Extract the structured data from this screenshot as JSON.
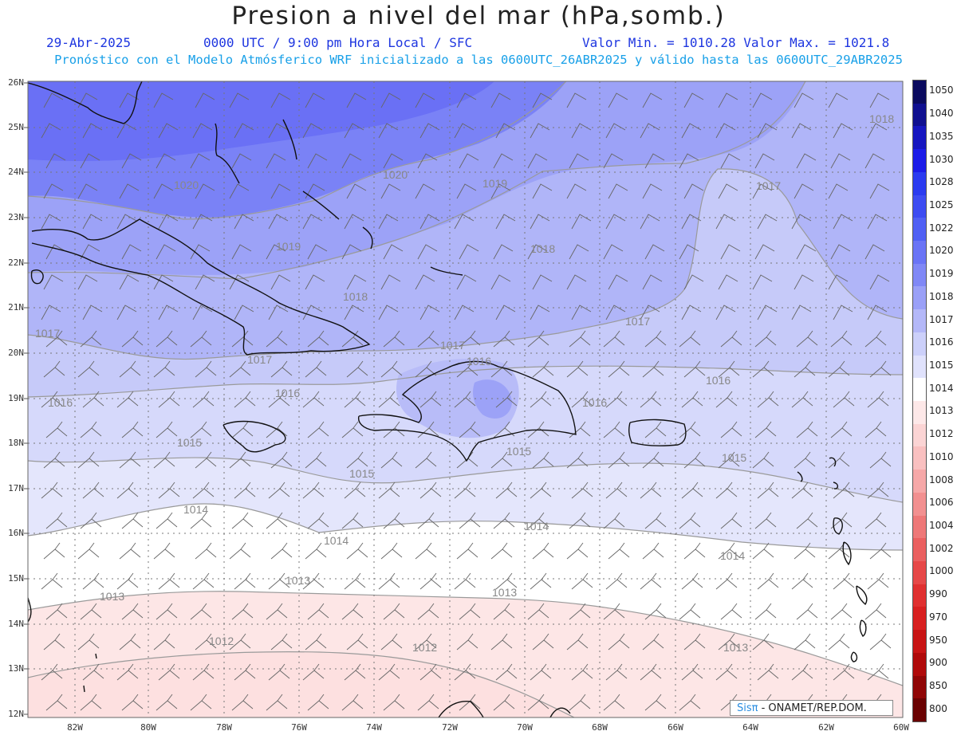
{
  "title": "Presion a nivel del mar (hPa,somb.)",
  "date": "29-Abr-2025",
  "time_info": "0000 UTC / 9:00 pm Hora Local / SFC",
  "min_max": "Valor Min. = 1010.28  Valor Max. = 1021.8",
  "forecast_info": "Pronóstico con el Modelo Atmósferico WRF inicializado a las 0600UTC_26ABR2025 y válido hasta las  0600UTC_29ABR2025",
  "latitudes": [
    "26N",
    "25N",
    "24N",
    "23N",
    "22N",
    "21N",
    "20N",
    "19N",
    "18N",
    "17N",
    "16N",
    "15N",
    "14N",
    "13N",
    "12N"
  ],
  "longitudes": [
    "82W",
    "80W",
    "78W",
    "76W",
    "74W",
    "72W",
    "70W",
    "68W",
    "66W",
    "64W",
    "62W",
    "60W"
  ],
  "colorbar": {
    "labels": [
      "1050",
      "1040",
      "1035",
      "1030",
      "1028",
      "1025",
      "1022",
      "1020",
      "1019",
      "1018",
      "1017",
      "1016",
      "1015",
      "1014",
      "1013",
      "1012",
      "1010",
      "1008",
      "1006",
      "1004",
      "1002",
      "1000",
      "990",
      "970",
      "950",
      "900",
      "850",
      "800"
    ],
    "colors": [
      "#0a0a5e",
      "#101090",
      "#1616c0",
      "#1c1ce8",
      "#2b3bf0",
      "#3d4cf2",
      "#5060f4",
      "#6a74f6",
      "#8088f6",
      "#9aa0f7",
      "#b4b8f8",
      "#ccd0fa",
      "#e0e2fc",
      "#ffffff",
      "#fde8e8",
      "#fbd4d4",
      "#f9c0c0",
      "#f6a8a8",
      "#f29090",
      "#ee7878",
      "#ea6060",
      "#e64848",
      "#e03030",
      "#d82020",
      "#c81414",
      "#b00a0a",
      "#900606",
      "#6a0202"
    ]
  },
  "contour_labels": [
    "1020",
    "1020",
    "1019",
    "1019",
    "1018",
    "1018",
    "1018",
    "1017",
    "1017",
    "1017",
    "1017",
    "1017",
    "1016",
    "1016",
    "1016",
    "1016",
    "1016",
    "1015",
    "1015",
    "1015",
    "1015",
    "1014",
    "1014",
    "1014",
    "1014",
    "1013",
    "1013",
    "1013",
    "1013",
    "1012",
    "1012"
  ],
  "credit": {
    "logo": "Sisπ",
    "text": " - ONAMET/REP.DOM."
  }
}
